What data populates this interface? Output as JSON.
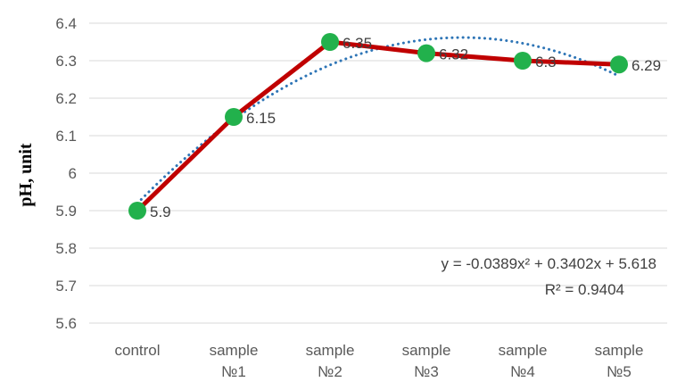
{
  "chart_data": {
    "type": "line",
    "title": "",
    "xlabel": "",
    "ylabel": "pH, unit",
    "ylim": [
      5.6,
      6.4
    ],
    "yticks": [
      "5.6",
      "5.7",
      "5.8",
      "5.9",
      "6",
      "6.1",
      "6.2",
      "6.3",
      "6.4"
    ],
    "categories": [
      [
        "control"
      ],
      [
        "sample",
        "№1"
      ],
      [
        "sample",
        "№2"
      ],
      [
        "sample",
        "№3"
      ],
      [
        "sample",
        "№4"
      ],
      [
        "sample",
        "№5"
      ]
    ],
    "series": [
      {
        "values": [
          5.9,
          6.15,
          6.35,
          6.32,
          6.3,
          6.29
        ],
        "data_labels": [
          "5.9",
          "6.15",
          "6.35",
          "6.32",
          "6.3",
          "6.29"
        ]
      }
    ],
    "trendline": {
      "type": "polynomial",
      "order": 2,
      "coefficients": [
        -0.0389,
        0.3402,
        5.618
      ],
      "equation_text": "y = -0.0389x² + 0.3402x + 5.618",
      "r2_text": "R² = 0.9404"
    },
    "grid": true,
    "legend": "none"
  },
  "colors": {
    "series_line": "#C00000",
    "marker": "#22B14C",
    "trendline": "#2E75B6",
    "gridline": "#D9D9D9"
  }
}
